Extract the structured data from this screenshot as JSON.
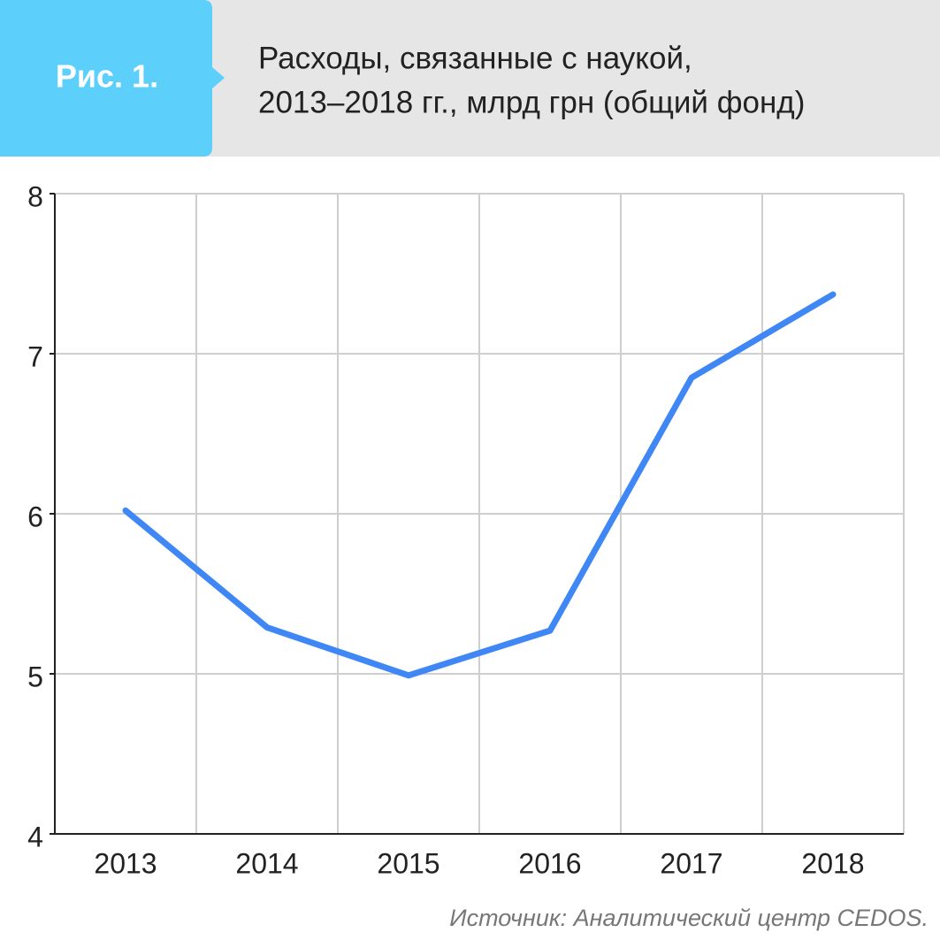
{
  "figure_label": "Рис. 1.",
  "source": "Источник: Аналитический центр CEDOS.",
  "chart_data": {
    "type": "line",
    "title": [
      "Расходы, связанные с наукой,",
      "2013–2018 гг., млрд грн (общий фонд)"
    ],
    "categories": [
      "2013",
      "2014",
      "2015",
      "2016",
      "2017",
      "2018"
    ],
    "values": [
      6.02,
      5.29,
      4.99,
      5.27,
      6.85,
      7.37
    ],
    "color": "#3f87f5",
    "ylim": [
      4,
      8
    ],
    "yticks": [
      4,
      5,
      6,
      7,
      8
    ],
    "grid": true
  }
}
